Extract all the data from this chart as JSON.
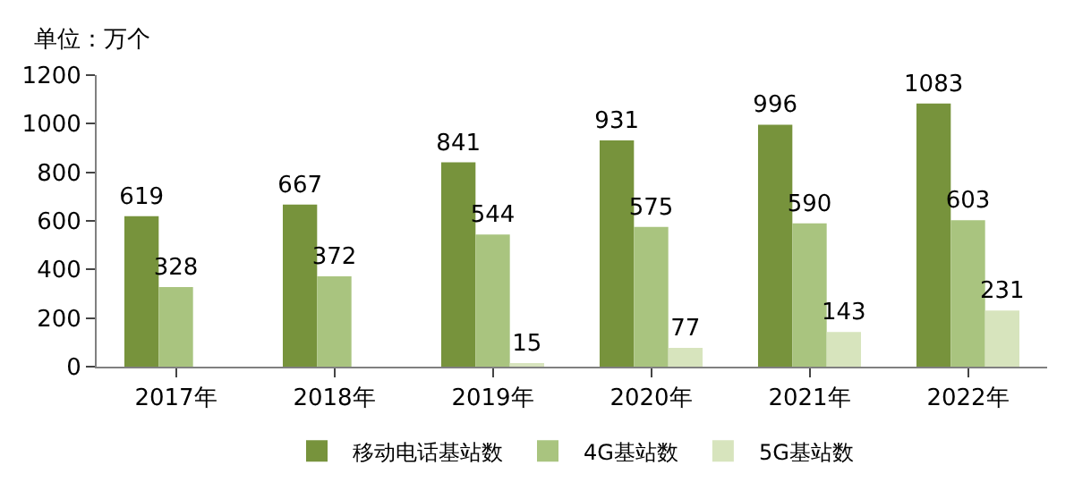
{
  "chart_data": {
    "type": "bar",
    "ylabel": "单位：万个",
    "categories": [
      "2017年",
      "2018年",
      "2019年",
      "2020年",
      "2021年",
      "2022年"
    ],
    "series": [
      {
        "name": "移动电话基站数",
        "color": "#77933c",
        "values": [
          619,
          667,
          841,
          931,
          996,
          1083
        ]
      },
      {
        "name": "4G基站数",
        "color": "#a9c47f",
        "values": [
          328,
          372,
          544,
          575,
          590,
          603
        ]
      },
      {
        "name": "5G基站数",
        "color": "#d7e4bd",
        "values": [
          null,
          null,
          15,
          77,
          143,
          231
        ]
      }
    ],
    "ylim": [
      0,
      1200
    ],
    "yticks": [
      0,
      200,
      400,
      600,
      800,
      1000,
      1200
    ],
    "data_labels": true,
    "legend": "bottom"
  }
}
